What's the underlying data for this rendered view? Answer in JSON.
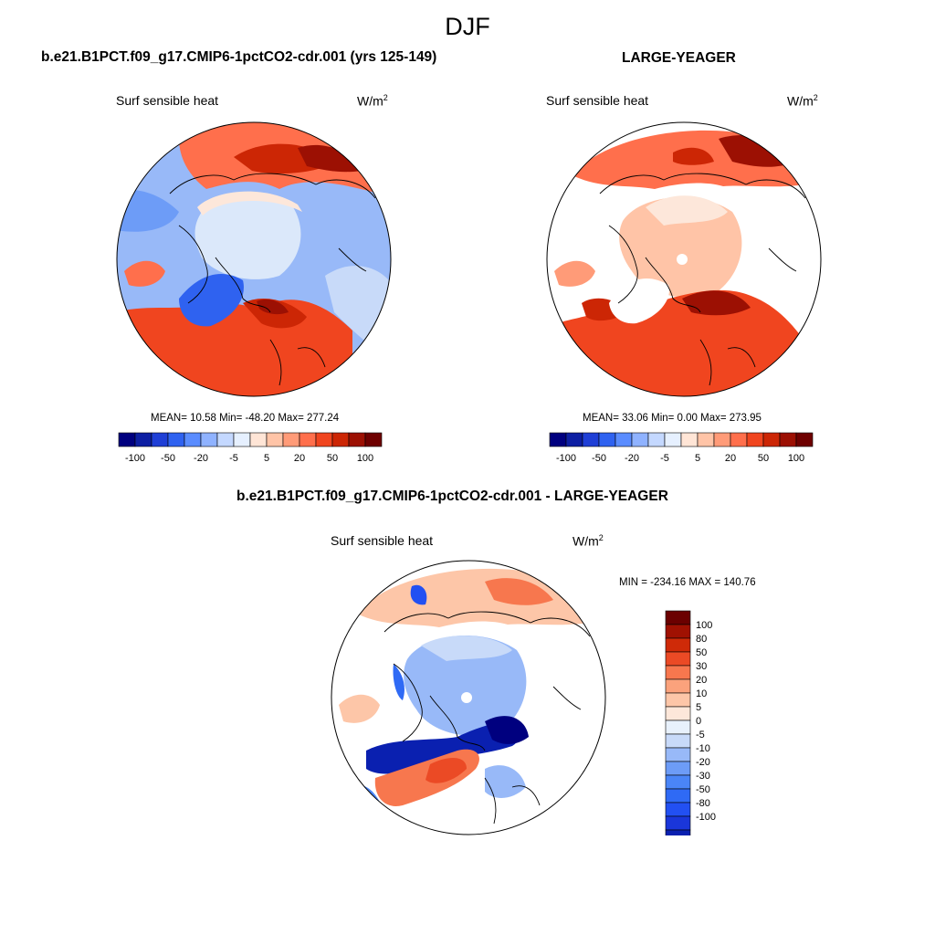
{
  "page": {
    "suptitle": "DJF"
  },
  "colors": {
    "sequential_scale_blue_to_red": [
      "#00007f",
      "#0d1fa3",
      "#1f3fd6",
      "#2f62f0",
      "#5a8cff",
      "#8fb2ff",
      "#c4d8ff",
      "#e6f0ff",
      "#ffe5d6",
      "#ffc4a7",
      "#ff9b78",
      "#ff6f4c",
      "#f0451f",
      "#cc2605",
      "#9c1003",
      "#6e0000"
    ],
    "diff_scale": [
      "#00007f",
      "#0a20b0",
      "#1a36da",
      "#2250f2",
      "#2f6af5",
      "#4a85f7",
      "#6d9cf7",
      "#98b9f8",
      "#c8daf9",
      "#e8f1fc",
      "#fde7da",
      "#fdc6a8",
      "#fba27c",
      "#f7774e",
      "#eb4a25",
      "#cf2a08",
      "#a01102",
      "#6b0000"
    ],
    "land_outline": "#000000",
    "ocean": "#ffffff"
  },
  "chart_data": [
    {
      "type": "heatmap",
      "projection": "north-polar-stereographic",
      "title": "b.e21.B1PCT.f09_g17.CMIP6-1pctCO2-cdr.001 (yrs 125-149)",
      "variable_label": "Surf sensible heat",
      "units_base": "W/m",
      "units_exp": "2",
      "stats_text": "MEAN=  10.58  Min= -48.20  Max= 277.24",
      "mean": 10.58,
      "min": -48.2,
      "max": 277.24,
      "colorbar": {
        "orientation": "horizontal",
        "levels": [
          -100,
          -80,
          -50,
          -30,
          -20,
          -10,
          -5,
          0,
          5,
          10,
          20,
          30,
          50,
          80,
          100
        ],
        "tick_labels": [
          "-100",
          "-50",
          "-20",
          "-5",
          "5",
          "20",
          "50",
          "100"
        ]
      }
    },
    {
      "type": "heatmap",
      "projection": "north-polar-stereographic",
      "title": "LARGE-YEAGER",
      "variable_label": "Surf sensible heat",
      "units_base": "W/m",
      "units_exp": "2",
      "stats_text": "MEAN=  33.06  Min=   0.00  Max= 273.95",
      "mean": 33.06,
      "min": 0.0,
      "max": 273.95,
      "colorbar": {
        "orientation": "horizontal",
        "levels": [
          -100,
          -80,
          -50,
          -30,
          -20,
          -10,
          -5,
          0,
          5,
          10,
          20,
          30,
          50,
          80,
          100
        ],
        "tick_labels": [
          "-100",
          "-50",
          "-20",
          "-5",
          "5",
          "20",
          "50",
          "100"
        ]
      }
    },
    {
      "type": "heatmap",
      "projection": "north-polar-stereographic",
      "title": "b.e21.B1PCT.f09_g17.CMIP6-1pctCO2-cdr.001 - LARGE-YEAGER",
      "variable_label": "Surf sensible heat",
      "units_base": "W/m",
      "units_exp": "2",
      "stats_text": "MIN = -234.16 MAX = 140.76",
      "min": -234.16,
      "max": 140.76,
      "colorbar": {
        "orientation": "vertical",
        "levels": [
          100,
          80,
          50,
          30,
          20,
          10,
          5,
          0,
          -5,
          -10,
          -20,
          -30,
          -50,
          -80,
          -100
        ],
        "tick_labels": [
          "100",
          "80",
          "50",
          "30",
          "20",
          "10",
          "5",
          "0",
          "-5",
          "-10",
          "-20",
          "-30",
          "-50",
          "-80",
          "-100"
        ]
      }
    }
  ]
}
